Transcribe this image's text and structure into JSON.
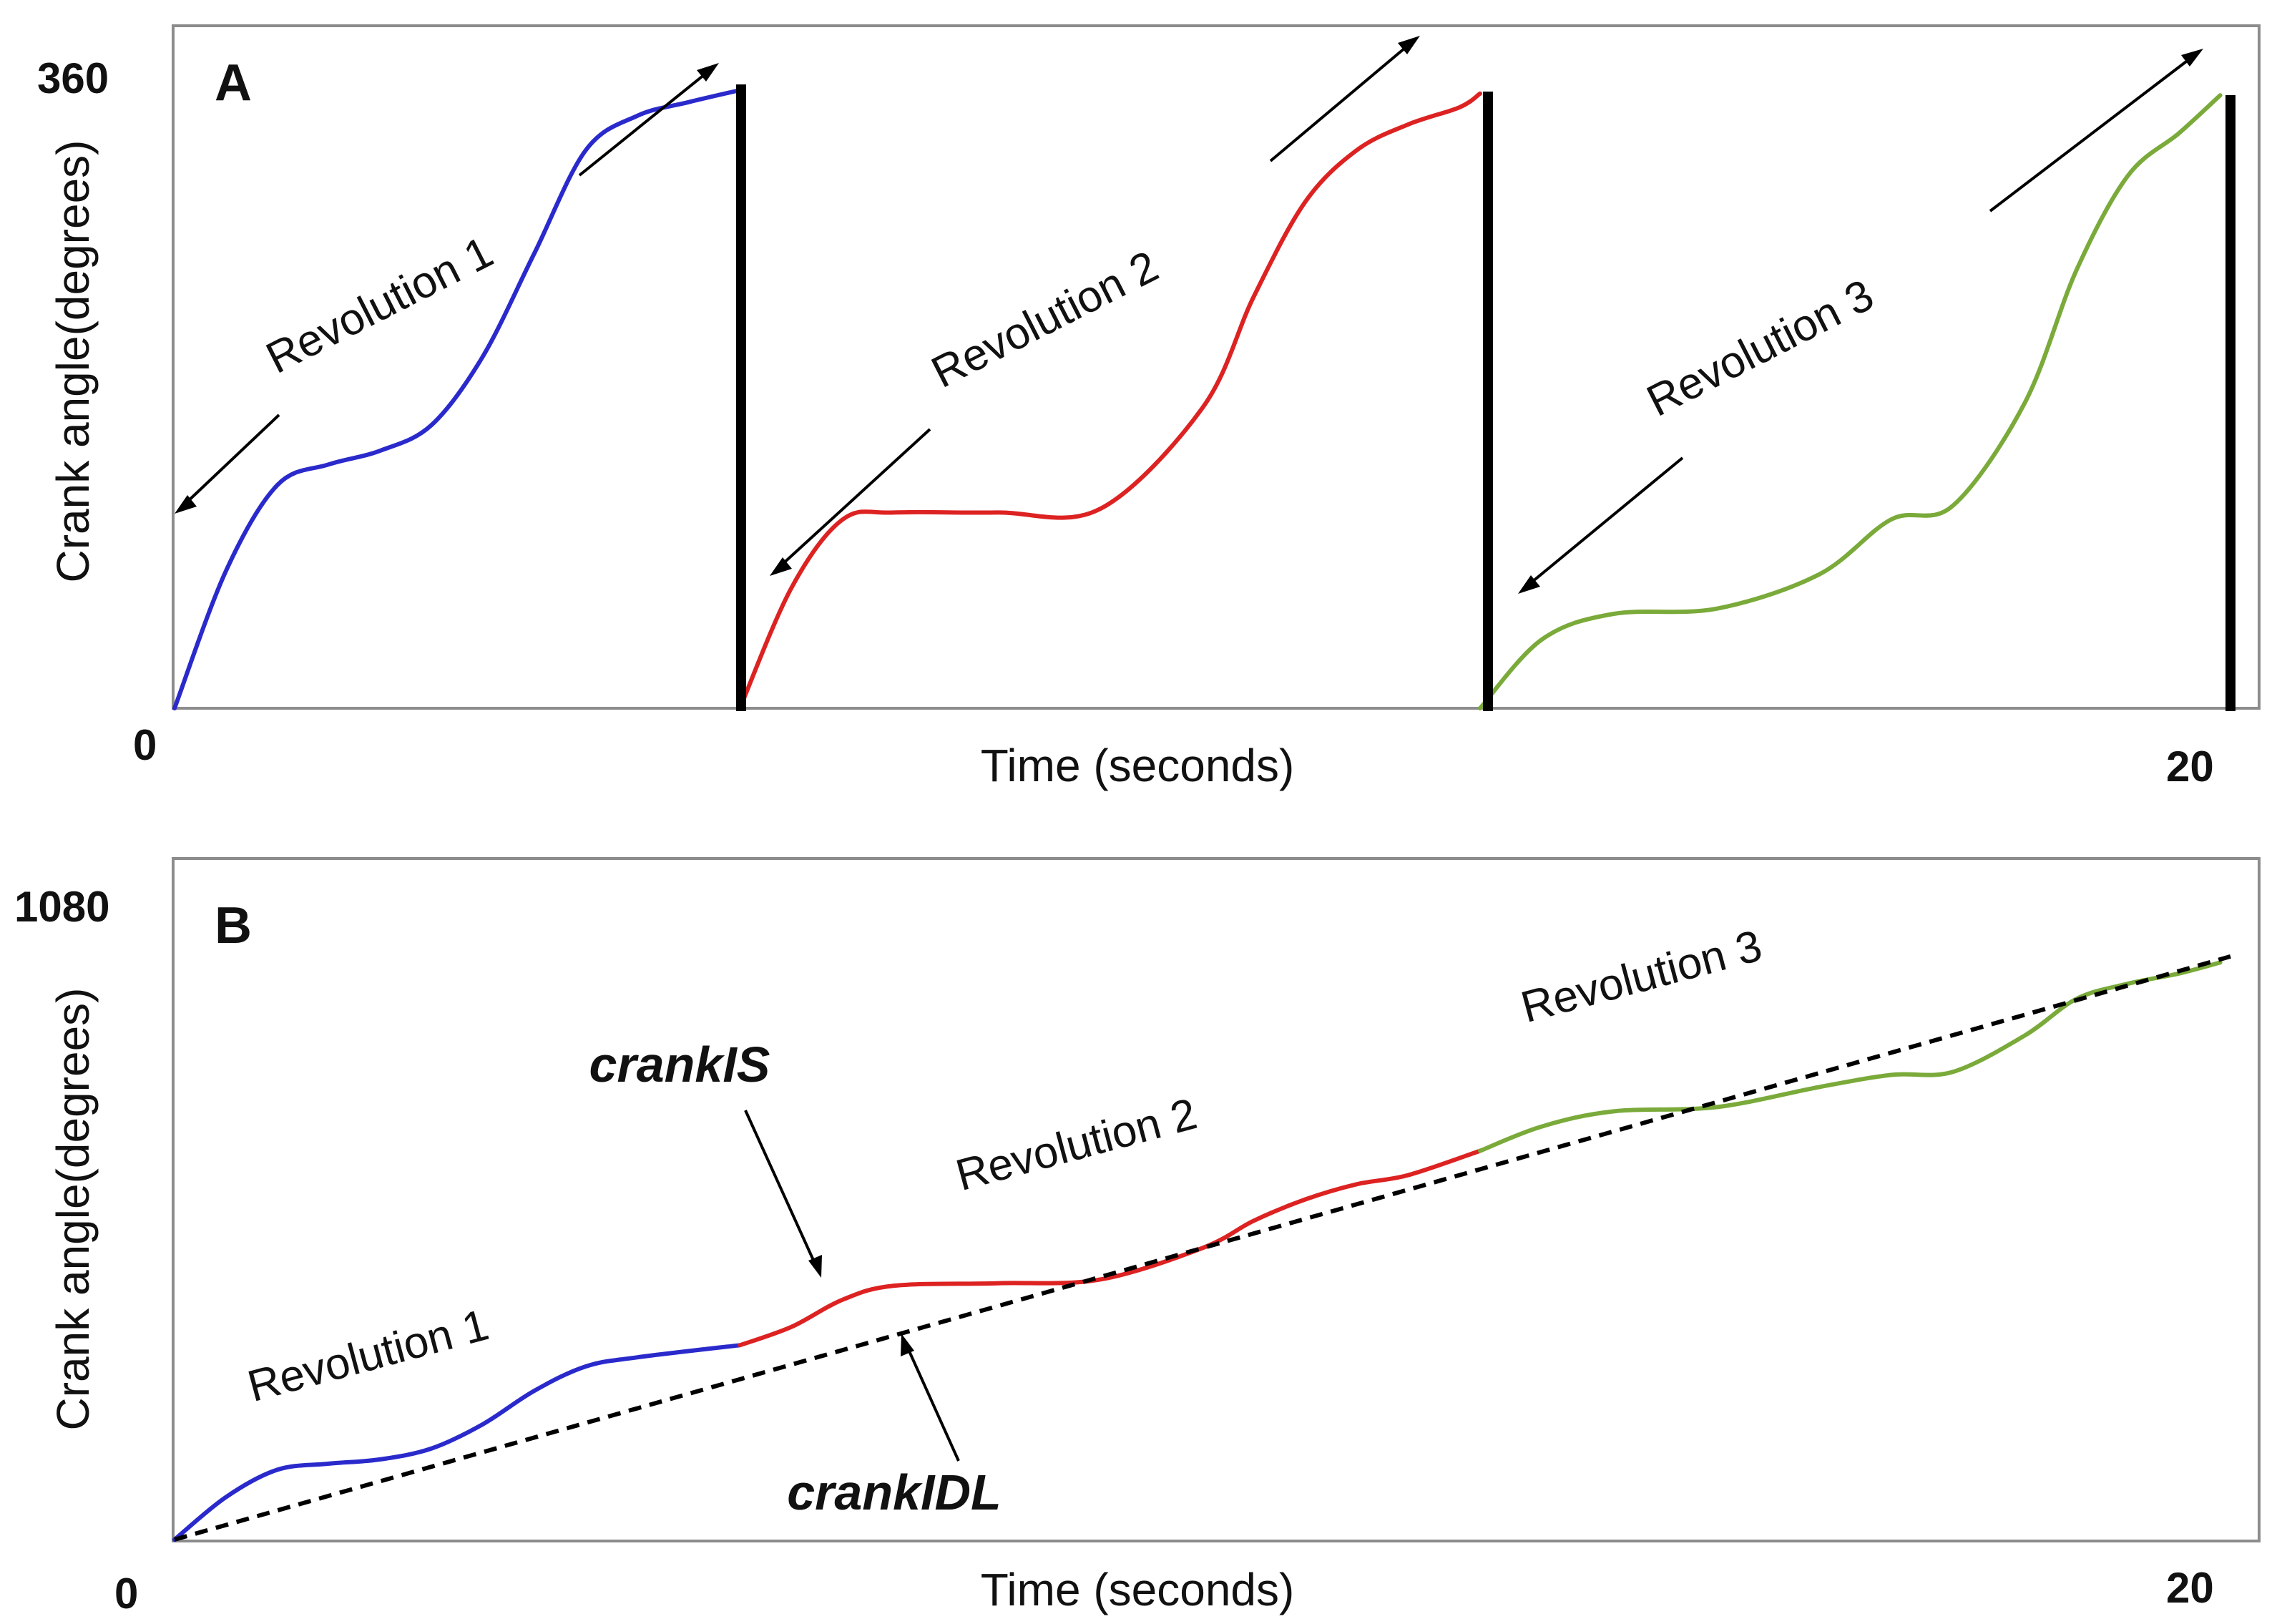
{
  "chart_data": [
    {
      "panel": "A",
      "type": "line",
      "xlabel": "Time (seconds)",
      "ylabel": "Crank angle(degrees)",
      "xlim": [
        0,
        20
      ],
      "ylim": [
        0,
        360
      ],
      "x_ticks": [
        "0",
        "20"
      ],
      "y_ticks": [
        "360"
      ],
      "colors": [
        "#2a2acc",
        "#dd2222",
        "#7aaa3a"
      ],
      "series": [
        {
          "label": "Revolution 1",
          "color": "#2a2acc",
          "x": [
            0,
            0.5,
            1.0,
            1.5,
            2.0,
            2.5,
            3.0,
            3.5,
            4.0,
            4.5,
            5.0,
            5.5
          ],
          "y": [
            0,
            80,
            130,
            142,
            150,
            165,
            205,
            265,
            325,
            345,
            353,
            360
          ]
        },
        {
          "label": "Revolution 2",
          "color": "#dd2222",
          "x": [
            5.5,
            6.0,
            6.5,
            7.0,
            8.0,
            9.0,
            10.0,
            10.5,
            11.0,
            11.5,
            12.0,
            12.5,
            12.7
          ],
          "y": [
            0,
            70,
            110,
            114,
            114,
            116,
            175,
            240,
            295,
            325,
            340,
            350,
            358
          ]
        },
        {
          "label": "Revolution 3",
          "color": "#7aaa3a",
          "x": [
            12.7,
            13.3,
            14.0,
            15.0,
            16.0,
            16.7,
            17.3,
            18.0,
            18.5,
            19.0,
            19.5,
            19.9
          ],
          "y": [
            0,
            40,
            55,
            58,
            78,
            110,
            118,
            178,
            255,
            310,
            335,
            357
          ]
        }
      ],
      "annotations": [
        "Revolution 1",
        "Revolution 2",
        "Revolution 3"
      ]
    },
    {
      "panel": "B",
      "type": "line",
      "xlabel": "Time (seconds)",
      "ylabel": "Crank angle(degrees)",
      "xlim": [
        0,
        20
      ],
      "ylim": [
        0,
        1080
      ],
      "x_ticks": [
        "0",
        "20"
      ],
      "y_ticks": [
        "1080"
      ],
      "colors": [
        "#2a2acc",
        "#dd2222",
        "#7aaa3a",
        "#000000"
      ],
      "series": [
        {
          "label": "Revolution 1",
          "color": "#2a2acc",
          "x": [
            0,
            0.5,
            1.0,
            1.5,
            2.0,
            2.5,
            3.0,
            3.5,
            4.0,
            4.5,
            5.5
          ],
          "y": [
            0,
            70,
            115,
            125,
            132,
            150,
            190,
            245,
            285,
            300,
            320
          ]
        },
        {
          "label": "Revolution 2",
          "color": "#dd2222",
          "x": [
            5.5,
            6.0,
            6.5,
            7.0,
            8.0,
            9.0,
            10.0,
            10.5,
            11.0,
            11.5,
            12.0,
            12.7
          ],
          "y": [
            320,
            350,
            395,
            418,
            422,
            428,
            480,
            525,
            560,
            585,
            600,
            640
          ]
        },
        {
          "label": "Revolution 3",
          "color": "#7aaa3a",
          "x": [
            12.7,
            13.3,
            14.0,
            15.0,
            16.0,
            16.7,
            17.3,
            18.0,
            18.5,
            19.0,
            19.5,
            19.9
          ],
          "y": [
            640,
            680,
            705,
            712,
            745,
            765,
            770,
            830,
            890,
            915,
            932,
            950
          ]
        },
        {
          "label": "crankIDL",
          "color": "#000000",
          "dashed": true,
          "x": [
            0,
            20
          ],
          "y": [
            0,
            960
          ]
        }
      ],
      "annotations": [
        "Revolution 1",
        "Revolution 2",
        "Revolution 3",
        "crankIS",
        "crankIDL"
      ]
    }
  ],
  "panels": {
    "a": {
      "letter": "A",
      "y_top": "360",
      "x_left": "0",
      "x_right": "20",
      "xlabel": "Time (seconds)",
      "ylabel": "Crank angle(degrees)",
      "labels": [
        "Revolution 1",
        "Revolution 2",
        "Revolution 3"
      ]
    },
    "b": {
      "letter": "B",
      "y_top": "1080",
      "x_left": "0",
      "x_right": "20",
      "xlabel": "Time (seconds)",
      "ylabel": "Crank angle(degrees)",
      "labels": [
        "Revolution 1",
        "Revolution 2",
        "Revolution 3"
      ],
      "crankIS": "crankIS",
      "crankIDL": "crankIDL"
    }
  }
}
